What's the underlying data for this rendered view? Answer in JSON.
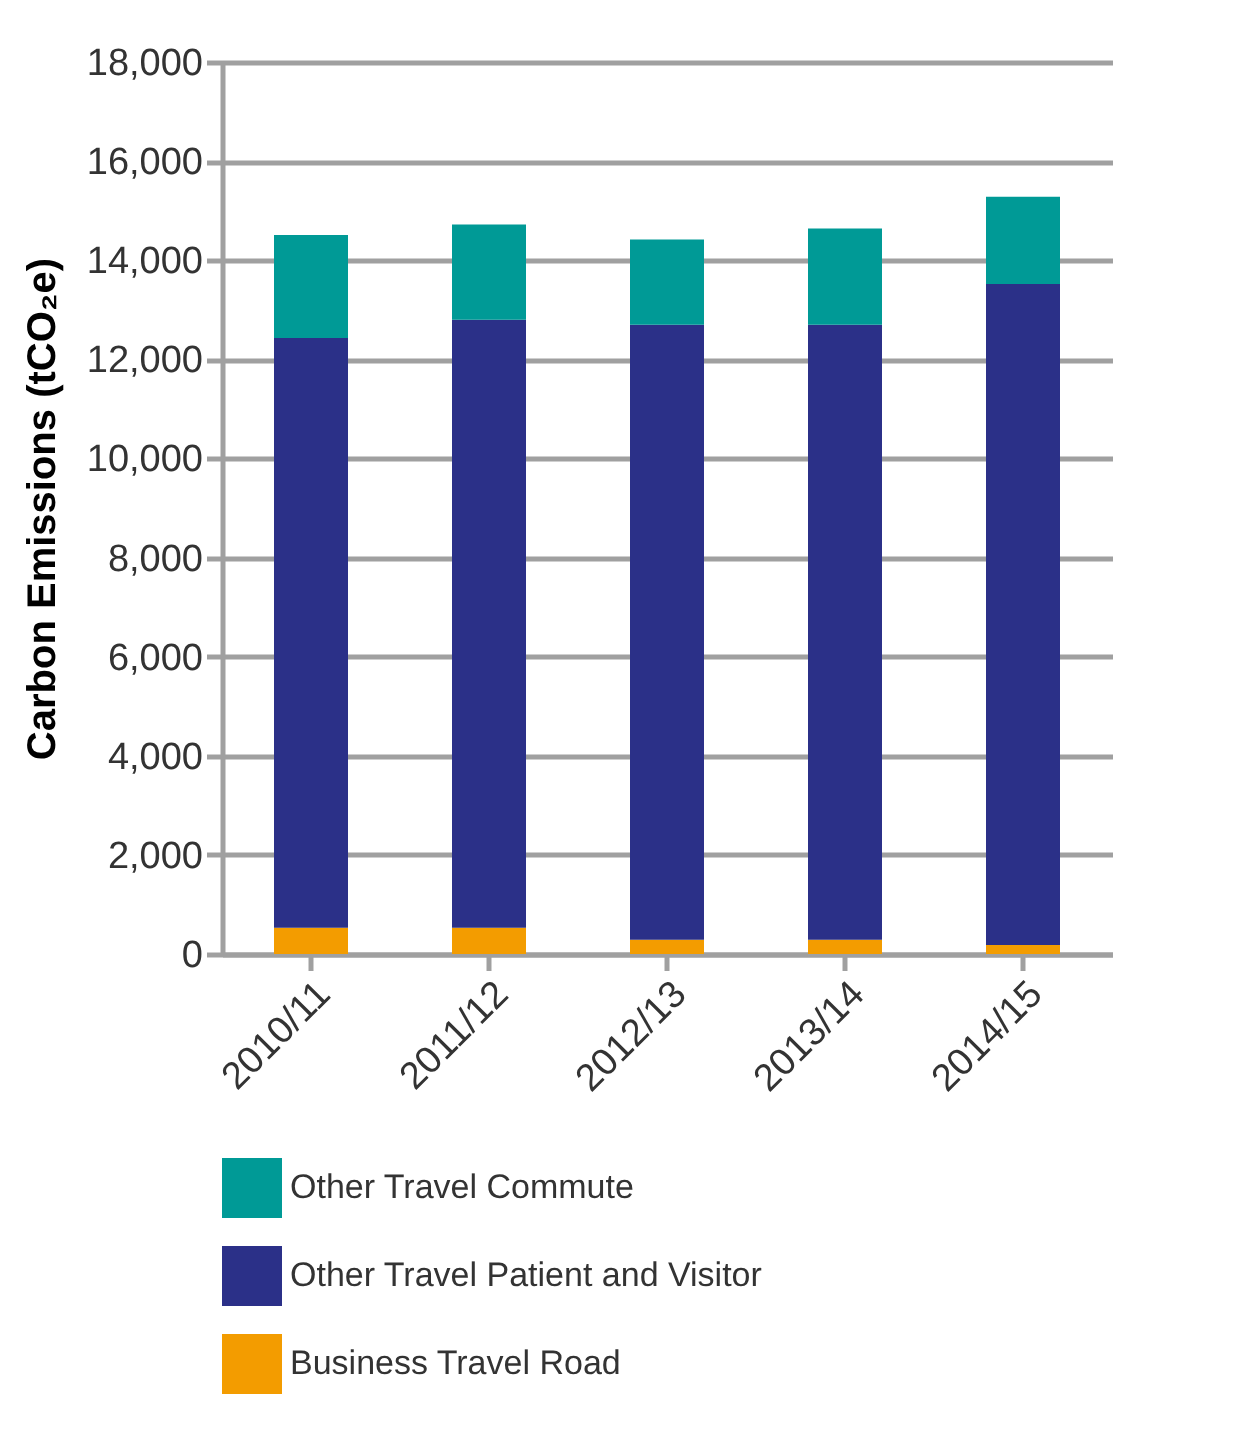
{
  "chart_data": {
    "type": "bar",
    "stacked": true,
    "ylabel": "Carbon Emissions (tCO₂e)",
    "categories": [
      "2010/11",
      "2011/12",
      "2012/13",
      "2013/14",
      "2014/15"
    ],
    "series": [
      {
        "name": "Business Travel Road",
        "color": "#f39c00",
        "values": [
          530,
          530,
          290,
          290,
          180
        ]
      },
      {
        "name": "Other Travel Patient and Visitor",
        "color": "#2b3088",
        "values": [
          11900,
          12270,
          12410,
          12410,
          13340
        ]
      },
      {
        "name": "Other Travel Commute",
        "color": "#009a96",
        "values": [
          2080,
          1920,
          1720,
          1940,
          1760
        ]
      }
    ],
    "ylim": [
      0,
      18000
    ],
    "yticks": [
      0,
      {
        "value": 2000,
        "label": "2,000"
      },
      {
        "value": 4000,
        "label": "4,000"
      },
      {
        "value": 6000,
        "label": "6,000"
      },
      {
        "value": 8000,
        "label": "8,000"
      },
      {
        "value": 10000,
        "label": "10,000"
      },
      {
        "value": 12000,
        "label": "12,000"
      },
      {
        "value": 14000,
        "label": "14,000"
      },
      {
        "value": 16000,
        "label": "16,000"
      },
      {
        "value": 18000,
        "label": "18,000"
      }
    ],
    "grid": "y",
    "legend": "bottom"
  }
}
